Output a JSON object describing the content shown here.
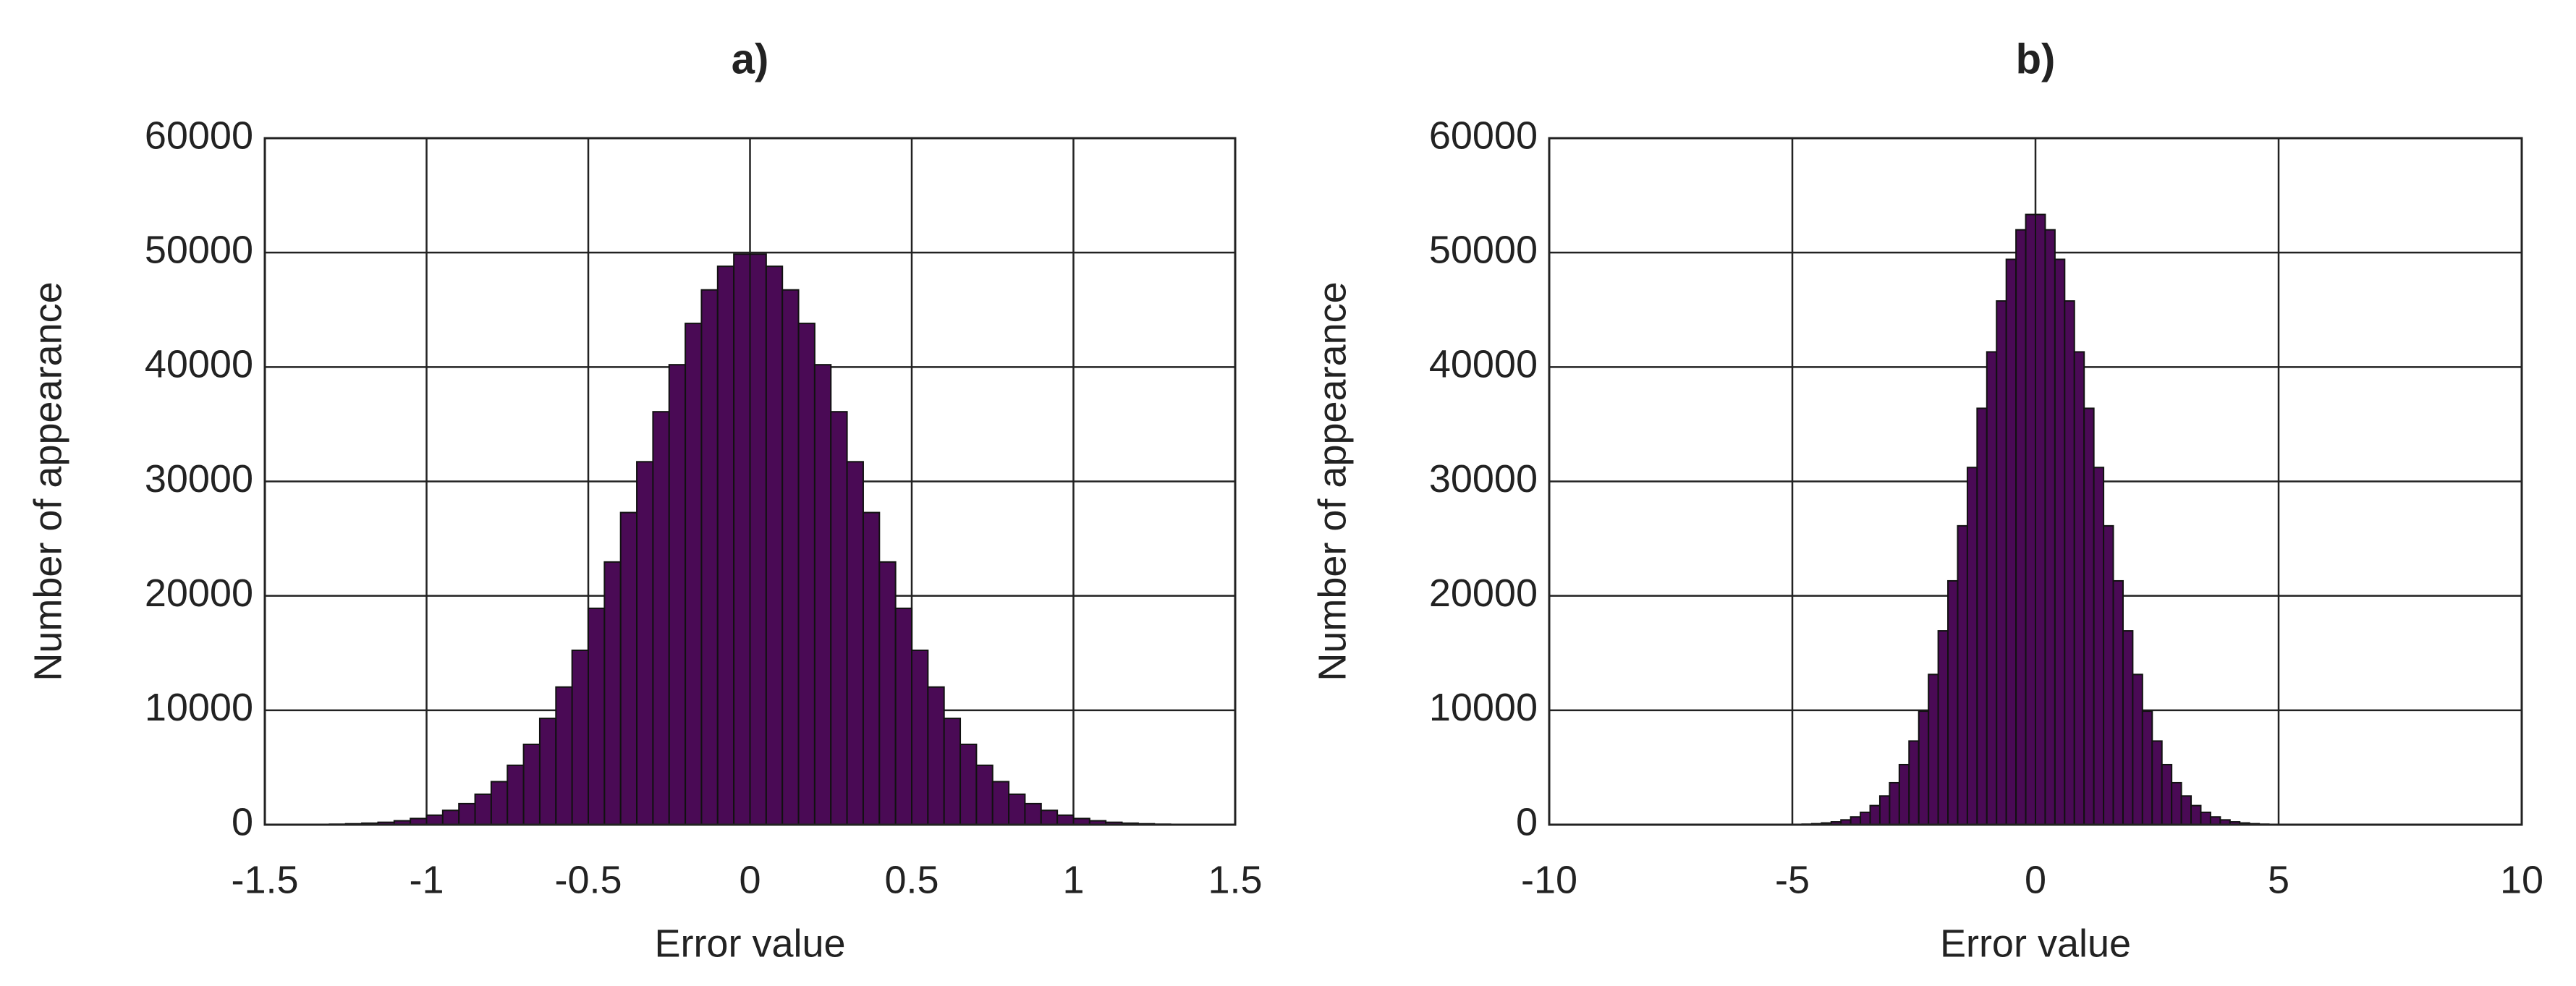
{
  "chart_data": [
    {
      "type": "histogram",
      "title": "a)",
      "xlabel": "Error value",
      "ylabel": "Number of appearance",
      "bins": [
        -1.3,
        -1.25,
        -1.2,
        -1.15,
        -1.1,
        -1.05,
        -1,
        -0.95,
        -0.9,
        -0.85,
        -0.8,
        -0.75,
        -0.7,
        -0.65,
        -0.6,
        -0.55,
        -0.5,
        -0.45,
        -0.4,
        -0.35,
        -0.3,
        -0.25,
        -0.2,
        -0.15,
        -0.1,
        -0.05,
        0,
        0.05,
        0.1,
        0.15,
        0.2,
        0.25,
        0.3,
        0.35,
        0.4,
        0.45,
        0.5,
        0.55,
        0.6,
        0.65,
        0.7,
        0.75,
        0.8,
        0.85,
        0.9,
        0.95,
        1,
        1.05,
        1.1,
        1.15,
        1.2,
        1.25,
        1.3
      ],
      "values": [
        45,
        80,
        130,
        210,
        340,
        540,
        830,
        1250,
        1840,
        2660,
        3760,
        5190,
        7020,
        9290,
        12030,
        15240,
        18910,
        22960,
        27280,
        31720,
        36090,
        40200,
        43810,
        46740,
        48800,
        49865,
        49865,
        48800,
        46740,
        43810,
        40200,
        36090,
        31720,
        27280,
        22960,
        18910,
        15240,
        12030,
        9290,
        7020,
        5190,
        3760,
        2660,
        1840,
        1250,
        830,
        540,
        340,
        210,
        130,
        80,
        45
      ],
      "color": "#4a0a55",
      "xlim": [
        -1.5,
        1.5
      ],
      "xticks": [
        -1.5,
        -1,
        -0.5,
        0,
        0.5,
        1,
        1.5
      ],
      "ylim": [
        0,
        60000
      ],
      "yticks": [
        0,
        10000,
        20000,
        30000,
        40000,
        50000,
        60000
      ],
      "grid": true
    },
    {
      "type": "histogram",
      "title": "b)",
      "xlabel": "Error value",
      "ylabel": "Number of appearance",
      "bins": [
        -5,
        -4.8,
        -4.6,
        -4.4,
        -4.2,
        -4,
        -3.8,
        -3.6,
        -3.4,
        -3.2,
        -3,
        -2.8,
        -2.6,
        -2.4,
        -2.2,
        -2,
        -1.8,
        -1.6,
        -1.4,
        -1.2,
        -1,
        -0.8,
        -0.6,
        -0.4,
        -0.2,
        0,
        0.2,
        0.4,
        0.6,
        0.8,
        1,
        1.2,
        1.4,
        1.6,
        1.8,
        2,
        2.2,
        2.4,
        2.6,
        2.8,
        3,
        3.2,
        3.4,
        3.6,
        3.8,
        4,
        4.2,
        4.4,
        4.6,
        4.8,
        5
      ],
      "values": [
        26,
        47,
        85,
        150,
        250,
        420,
        680,
        1080,
        1670,
        2510,
        3670,
        5250,
        7310,
        9920,
        13130,
        16940,
        21310,
        26120,
        31220,
        36390,
        41320,
        45770,
        49410,
        51990,
        53330,
        53330,
        51990,
        49410,
        45770,
        41320,
        36390,
        31220,
        26120,
        21310,
        16940,
        13130,
        9920,
        7310,
        5250,
        3670,
        2510,
        1670,
        1080,
        680,
        420,
        250,
        150,
        85,
        47,
        26
      ],
      "color": "#4a0a55",
      "xlim": [
        -10,
        10
      ],
      "xticks": [
        -10,
        -5,
        0,
        5,
        10
      ],
      "ylim": [
        0,
        60000
      ],
      "yticks": [
        0,
        10000,
        20000,
        30000,
        40000,
        50000,
        60000
      ],
      "grid": true
    }
  ]
}
